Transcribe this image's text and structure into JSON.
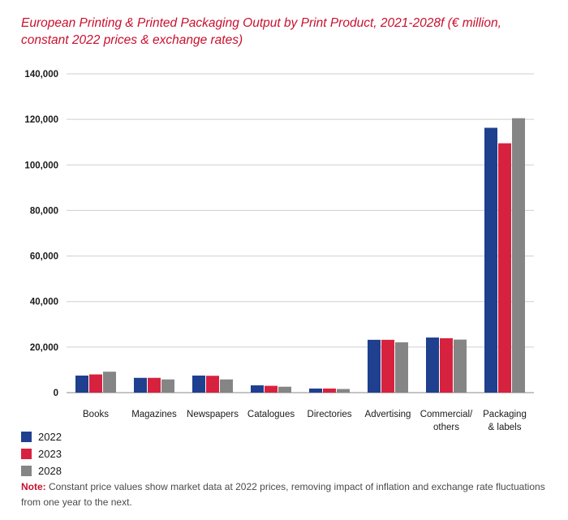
{
  "chart_data": {
    "type": "bar",
    "title": "European Printing & Printed Packaging Output by Print Product, 2021-2028f (€ million, constant 2022 prices & exchange rates)",
    "categories": [
      [
        "Books"
      ],
      [
        "Magazines"
      ],
      [
        "Newspapers"
      ],
      [
        "Catalogues"
      ],
      [
        "Directories"
      ],
      [
        "Advertising"
      ],
      [
        "Commercial/",
        "others"
      ],
      [
        "Packaging",
        "& labels"
      ]
    ],
    "series": [
      {
        "name": "2022",
        "color": "#1f3f8f",
        "values": [
          7500,
          6500,
          7500,
          3200,
          1800,
          23200,
          24200,
          116300
        ]
      },
      {
        "name": "2023",
        "color": "#d6223f",
        "values": [
          8000,
          6500,
          7400,
          3000,
          1800,
          23200,
          23900,
          109500
        ]
      },
      {
        "name": "2028",
        "color": "#858585",
        "values": [
          9200,
          5800,
          5800,
          2600,
          1600,
          22100,
          23300,
          120500
        ]
      }
    ],
    "ylim": [
      0,
      140000
    ],
    "yticks": [
      0,
      20000,
      40000,
      60000,
      80000,
      100000,
      120000,
      140000
    ],
    "ytick_labels": [
      "0",
      "20,000",
      "40,000",
      "60,000",
      "80,000",
      "100,000",
      "120,000",
      "140,000"
    ],
    "grid": true,
    "legend_position": "bottom-left"
  },
  "note": {
    "label": "Note:",
    "text": "Constant price values show market data at 2022 prices, removing impact of inflation and exchange rate fluctuations from one year to the next."
  }
}
